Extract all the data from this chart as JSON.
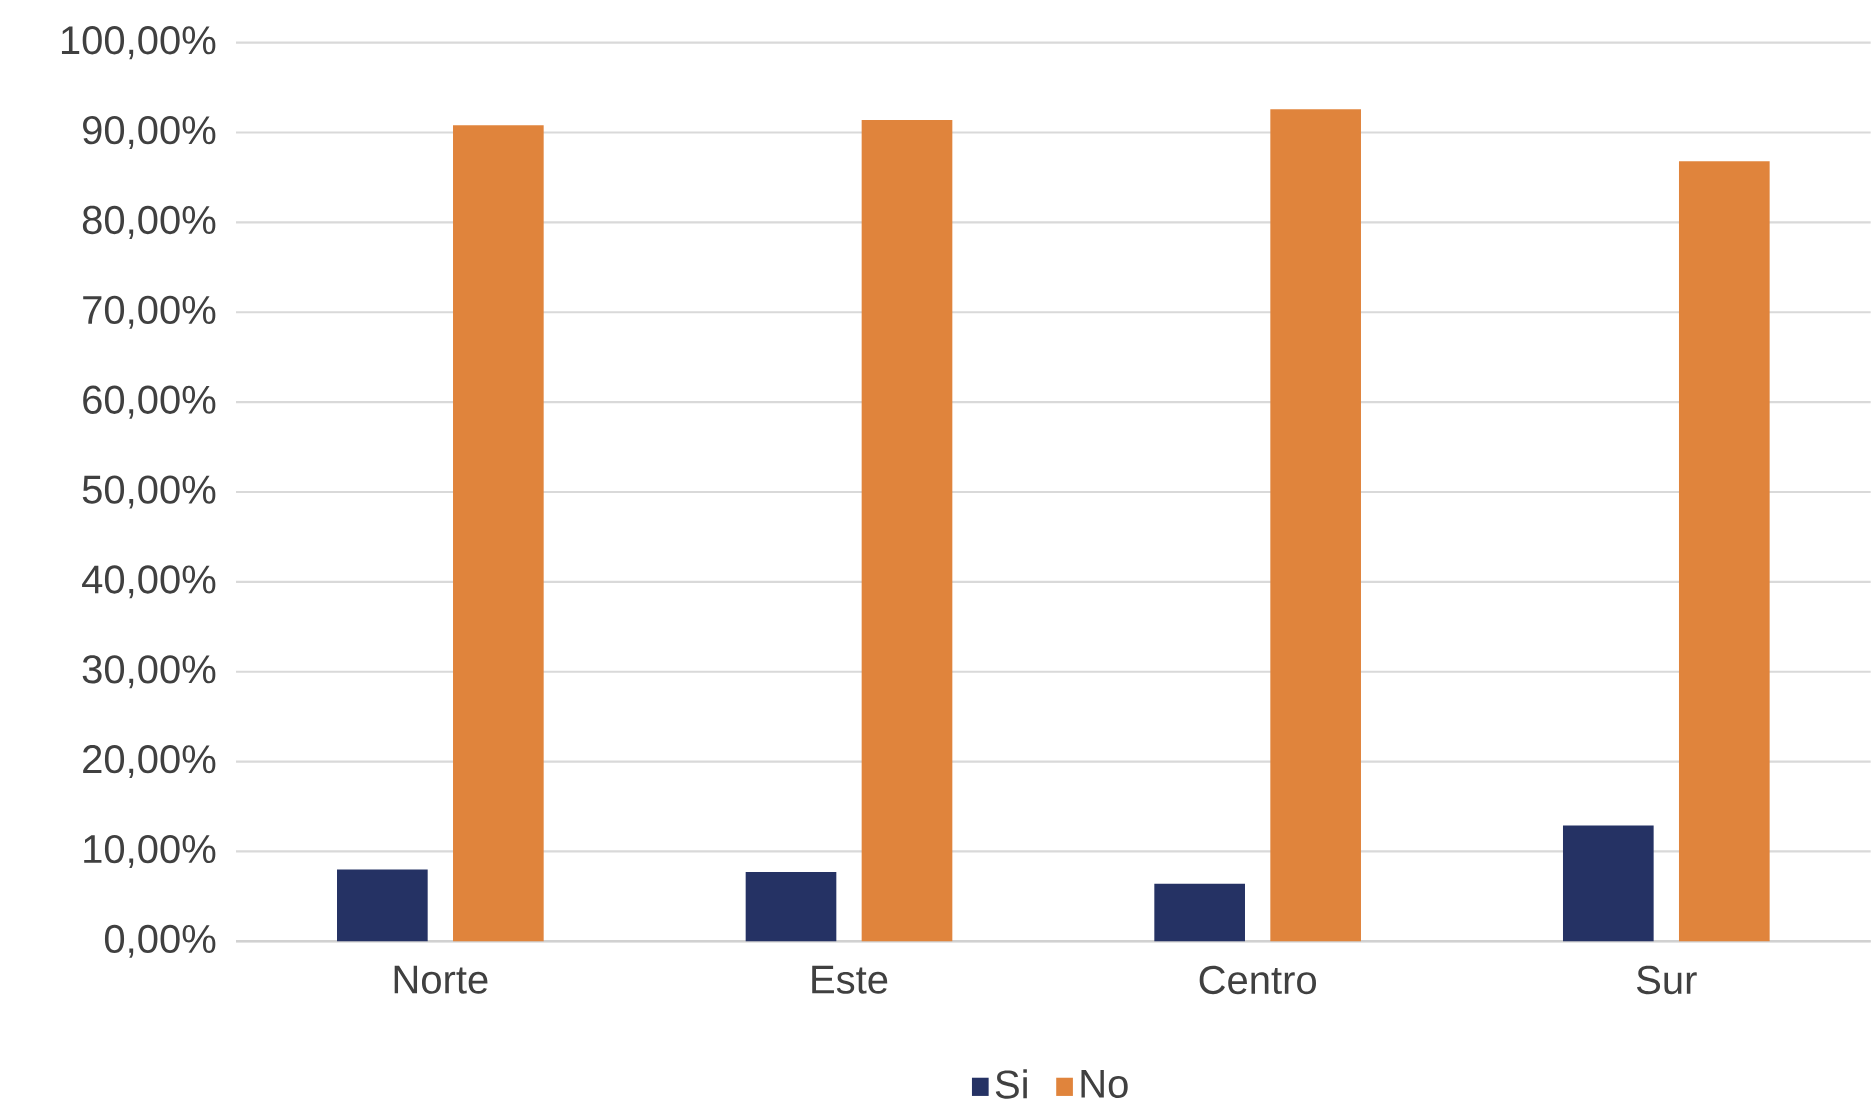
{
  "chart_data": {
    "type": "bar",
    "categories": [
      "Norte",
      "Este",
      "Centro",
      "Sur"
    ],
    "series": [
      {
        "name": "Si",
        "color": "#253264",
        "values": [
          8.0,
          7.7,
          6.4,
          12.9
        ]
      },
      {
        "name": "No",
        "color": "#e0843c",
        "values": [
          90.8,
          91.4,
          92.6,
          86.8
        ]
      }
    ],
    "ylim": [
      0,
      100
    ],
    "yticks": [
      {
        "value": 0,
        "label": "0,00%"
      },
      {
        "value": 10,
        "label": "10,00%"
      },
      {
        "value": 20,
        "label": "20,00%"
      },
      {
        "value": 30,
        "label": "30,00%"
      },
      {
        "value": 40,
        "label": "40,00%"
      },
      {
        "value": 50,
        "label": "50,00%"
      },
      {
        "value": 60,
        "label": "60,00%"
      },
      {
        "value": 70,
        "label": "70,00%"
      },
      {
        "value": 80,
        "label": "80,00%"
      },
      {
        "value": 90,
        "label": "90,00%"
      },
      {
        "value": 100,
        "label": "100,00%"
      }
    ],
    "grid": "y",
    "legend": "bottom"
  }
}
